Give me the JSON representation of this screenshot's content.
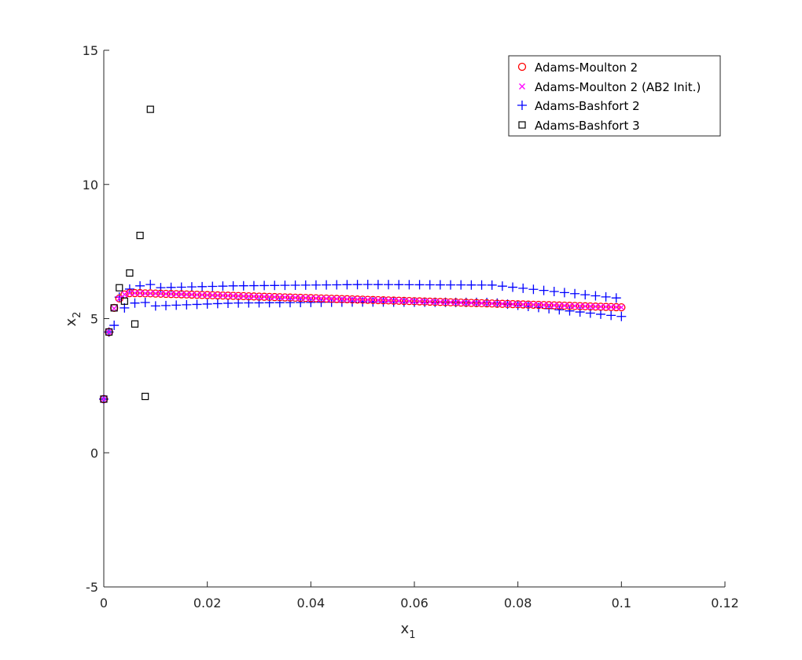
{
  "chart_data": {
    "type": "scatter",
    "title": "",
    "xlabel": "x",
    "xlabel_sub": "1",
    "ylabel": "x",
    "ylabel_sub": "2",
    "xlim": [
      0,
      0.12
    ],
    "ylim": [
      -5,
      15
    ],
    "xticks": [
      "0",
      "0.02",
      "0.04",
      "0.06",
      "0.08",
      "0.1",
      "0.12"
    ],
    "yticks": [
      "-5",
      "0",
      "5",
      "10",
      "15"
    ],
    "xtick_values": [
      0,
      0.02,
      0.04,
      0.06,
      0.08,
      0.1,
      0.12
    ],
    "ytick_values": [
      -5,
      0,
      5,
      10,
      15
    ],
    "grid": false,
    "legend_position": "top-right",
    "series": [
      {
        "name": "Adams-Moulton 2",
        "marker": "circle",
        "color": "#ff0000",
        "x_start": 0.0,
        "x_step": 0.001,
        "count": 101,
        "y_head": [
          2.0,
          4.5,
          5.4,
          5.75,
          5.9,
          5.95,
          5.95,
          5.95,
          5.94,
          5.94
        ],
        "y_end": 5.42
      },
      {
        "name": "Adams-Moulton 2 (AB2 Init.)",
        "marker": "x",
        "color": "#ff00ff",
        "x_start": 0.0,
        "x_step": 0.001,
        "count": 101,
        "y_head": [
          2.0,
          4.5,
          5.38,
          5.75,
          5.9,
          5.95,
          5.95,
          5.95,
          5.94,
          5.94
        ],
        "y_end": 5.42
      },
      {
        "name": "Adams-Bashfort 2",
        "marker": "plus",
        "color": "#0000ff",
        "x_start": 0.0,
        "x_step": 0.001,
        "count": 101,
        "upper_y": [
          6.1,
          6.22,
          6.27,
          6.25,
          5.75
        ],
        "lower_y": [
          5.4,
          5.58,
          5.62,
          5.6,
          5.08
        ],
        "y_head": [
          2.0,
          4.5,
          4.75,
          5.8,
          5.4,
          6.1,
          5.58,
          6.22,
          5.6,
          6.27
        ]
      },
      {
        "name": "Adams-Bashfort 3",
        "marker": "square",
        "color": "#000000",
        "x": [
          0.0,
          0.001,
          0.002,
          0.003,
          0.004,
          0.005,
          0.006,
          0.007,
          0.008,
          0.009
        ],
        "y": [
          2.0,
          4.5,
          5.4,
          6.15,
          5.65,
          6.7,
          4.8,
          8.1,
          2.1,
          12.8
        ]
      }
    ]
  },
  "legend": {
    "entries": [
      "Adams-Moulton 2",
      "Adams-Moulton 2 (AB2 Init.)",
      "Adams-Bashfort 2",
      "Adams-Bashfort 3"
    ]
  }
}
